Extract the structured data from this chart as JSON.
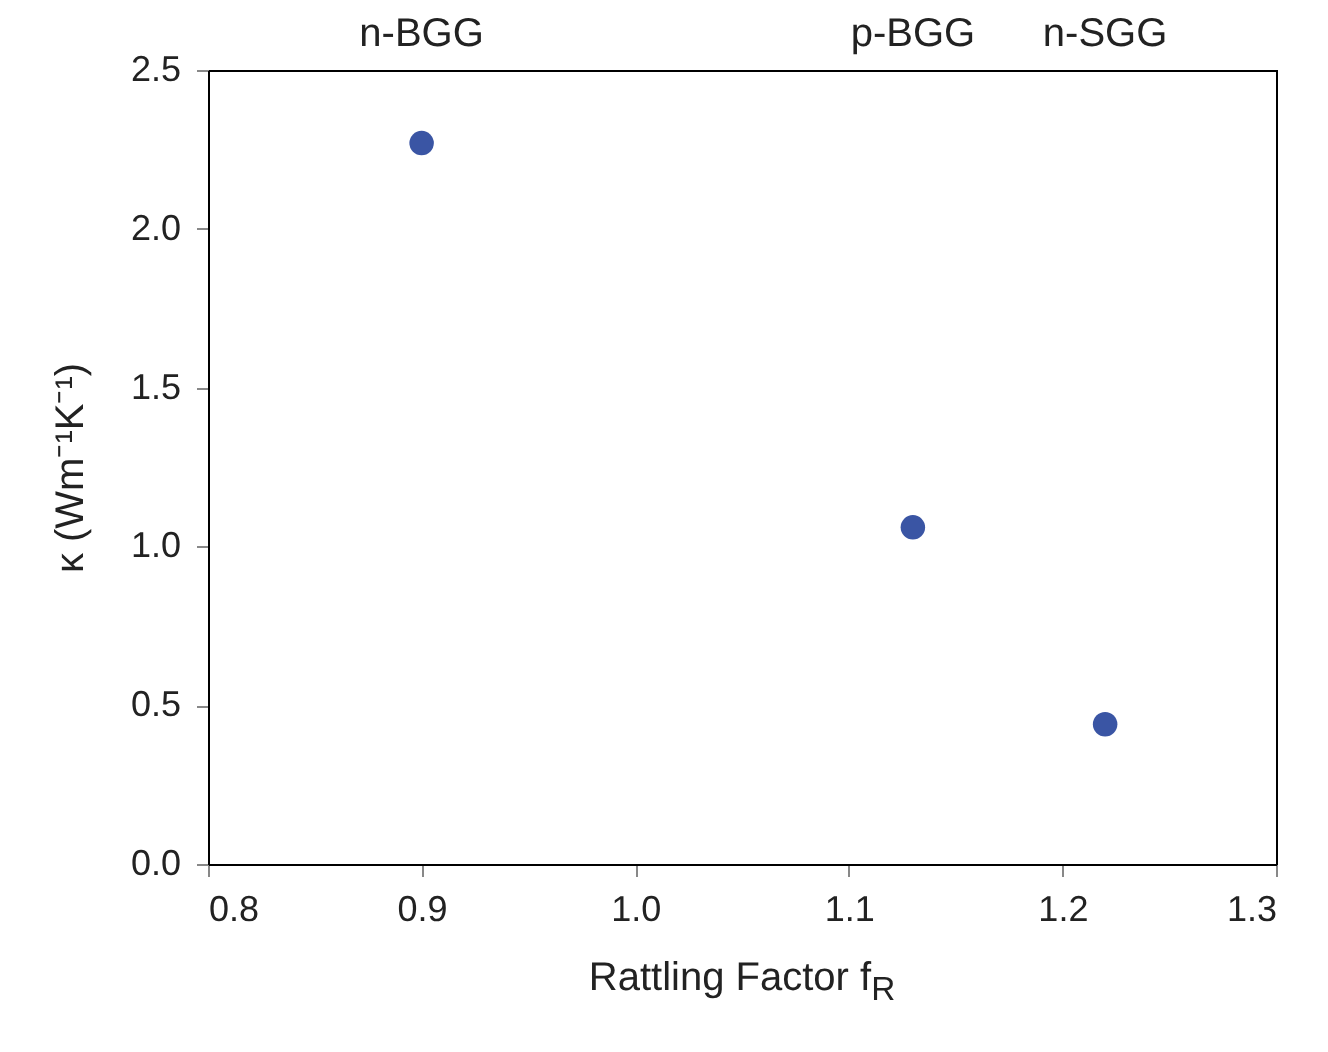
{
  "chart_data": {
    "type": "scatter",
    "xlabel": "Rattling Factor f$_{R}$",
    "ylabel": "κ (Wm⁻¹K⁻¹)",
    "x": [
      0.9,
      1.13,
      1.22
    ],
    "series": [
      {
        "color": "#3a55a4",
        "values": [
          2.27,
          1.06,
          0.44
        ]
      }
    ],
    "xlim": [
      0.8,
      1.3
    ],
    "xticks": [
      0.8,
      0.9,
      {
        "value": 1,
        "label": "1.0"
      },
      1.1,
      1.2,
      1.3
    ],
    "ylim": [
      0.0,
      2.5
    ],
    "yticks": [
      {
        "value": 0,
        "label": "0.0"
      },
      0.5,
      {
        "value": 1,
        "label": "1.0"
      },
      1.5,
      {
        "value": 2,
        "label": "2.0"
      },
      2.5
    ],
    "annotations": [
      "n-BGG",
      "p-BGG",
      "n-SGG"
    ],
    "marker": "circle",
    "grid": false
  }
}
